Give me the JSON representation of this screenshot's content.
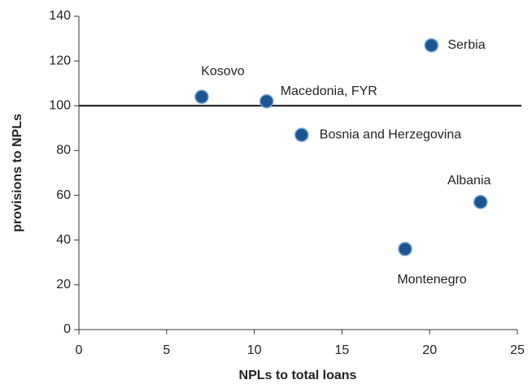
{
  "chart_data": {
    "type": "scatter",
    "xlabel": "NPLs to total loans",
    "ylabel": "provisions to NPLs",
    "labels": [
      "Kosovo",
      "Macedonia, FYR",
      "Bosnia and Herzegovina",
      "Serbia",
      "Albania",
      "Montenegro"
    ],
    "x": [
      7.0,
      10.7,
      12.7,
      20.1,
      22.9,
      18.6
    ],
    "values": [
      104,
      102,
      87,
      127,
      57,
      36
    ],
    "color": "#1b5593",
    "hline": 100,
    "xlim": [
      0,
      25
    ],
    "xticks": [
      0,
      5,
      10,
      15,
      20,
      25
    ],
    "ylim": [
      0,
      140
    ],
    "yticks": [
      0,
      20,
      40,
      60,
      80,
      100,
      120,
      140
    ]
  }
}
